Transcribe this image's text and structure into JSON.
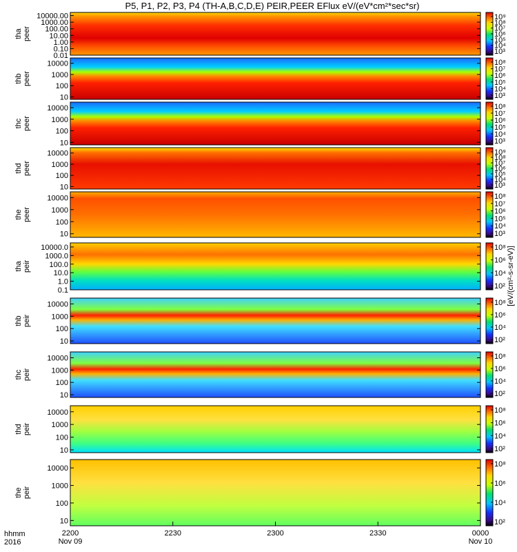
{
  "chart_data": {
    "type": "heatmap",
    "title": "P5, P1, P2, P3, P4 (TH-A,B,C,D,E) PEIR,PEER EFlux eV/(eV*cm²*sec*sr)",
    "x": {
      "ticks": [
        {
          "top": "2200",
          "bottom": "Nov 09",
          "t": 0
        },
        {
          "top": "2230",
          "bottom": "",
          "t": 30
        },
        {
          "top": "2300",
          "bottom": "",
          "t": 60
        },
        {
          "top": "2330",
          "bottom": "",
          "t": 90
        },
        {
          "top": "0000",
          "bottom": "Nov 10",
          "t": 120
        }
      ],
      "range_minutes": [
        0,
        120
      ],
      "corner_label_1": "hhmm",
      "corner_label_2": "2016"
    },
    "colorbar_label": "[eV/(cm²-s-sr-eV)]",
    "panels": [
      {
        "probe": "tha",
        "species": "peer",
        "ylog": true,
        "ylim": [
          0.01,
          30000
        ],
        "yticks": [
          "10000.00",
          "1000.00",
          "100.00",
          "10.00",
          "1.00",
          "0.10",
          "0.01"
        ],
        "cbar_ticks": [
          "10⁹",
          "10⁸",
          "10⁷",
          "10⁶",
          "10⁵",
          "10⁴",
          "10³"
        ]
      },
      {
        "probe": "thb",
        "species": "peer",
        "ylog": true,
        "ylim": [
          6,
          30000
        ],
        "yticks": [
          "10000",
          "1000",
          "100",
          "10"
        ],
        "cbar_ticks": [
          "10⁸",
          "10⁷",
          "10⁶",
          "10⁵",
          "10⁴",
          "10³"
        ]
      },
      {
        "probe": "thc",
        "species": "peer",
        "ylog": true,
        "ylim": [
          6,
          30000
        ],
        "yticks": [
          "10000",
          "1000",
          "100",
          "10"
        ],
        "cbar_ticks": [
          "10⁸",
          "10⁷",
          "10⁶",
          "10⁵",
          "10⁴",
          "10³"
        ]
      },
      {
        "probe": "thd",
        "species": "peer",
        "ylog": true,
        "ylim": [
          6,
          30000
        ],
        "yticks": [
          "10000",
          "1000",
          "100",
          "10"
        ],
        "cbar_ticks": [
          "10⁹",
          "10⁸",
          "10⁷",
          "10⁶",
          "10⁵",
          "10⁴",
          "10³"
        ]
      },
      {
        "probe": "the",
        "species": "peer",
        "ylog": true,
        "ylim": [
          5,
          30000
        ],
        "yticks": [
          "10000",
          "1000",
          "100",
          "10"
        ],
        "cbar_ticks": [
          "10⁸",
          "10⁷",
          "10⁶",
          "10⁵",
          "10⁴",
          "10³"
        ]
      },
      {
        "probe": "tha",
        "species": "peir",
        "ylog": true,
        "ylim": [
          0.1,
          30000
        ],
        "yticks": [
          "10000.0",
          "1000.0",
          "100.0",
          "10.0",
          "1.0",
          "0.1"
        ],
        "cbar_ticks": [
          "10⁸",
          "10⁶",
          "10⁴",
          "10²"
        ]
      },
      {
        "probe": "thb",
        "species": "peir",
        "ylog": true,
        "ylim": [
          6,
          30000
        ],
        "yticks": [
          "10000",
          "1000",
          "100",
          "10"
        ],
        "cbar_ticks": [
          "10⁸",
          "10⁶",
          "10⁴",
          "10²"
        ]
      },
      {
        "probe": "thc",
        "species": "peir",
        "ylog": true,
        "ylim": [
          6,
          30000
        ],
        "yticks": [
          "10000",
          "1000",
          "100",
          "10"
        ],
        "cbar_ticks": [
          "10⁸",
          "10⁶",
          "10⁴",
          "10²"
        ]
      },
      {
        "probe": "thd",
        "species": "peir",
        "ylog": true,
        "ylim": [
          6,
          30000
        ],
        "yticks": [
          "10000",
          "1000",
          "100",
          "10"
        ],
        "cbar_ticks": [
          "10⁸",
          "10⁶",
          "10⁴",
          "10²"
        ]
      },
      {
        "probe": "the",
        "species": "peir",
        "ylog": true,
        "ylim": [
          5,
          30000
        ],
        "yticks": [
          "10000",
          "1000",
          "100",
          "10"
        ],
        "cbar_ticks": [
          "10⁸",
          "10⁶",
          "10⁴",
          "10²"
        ]
      }
    ]
  }
}
